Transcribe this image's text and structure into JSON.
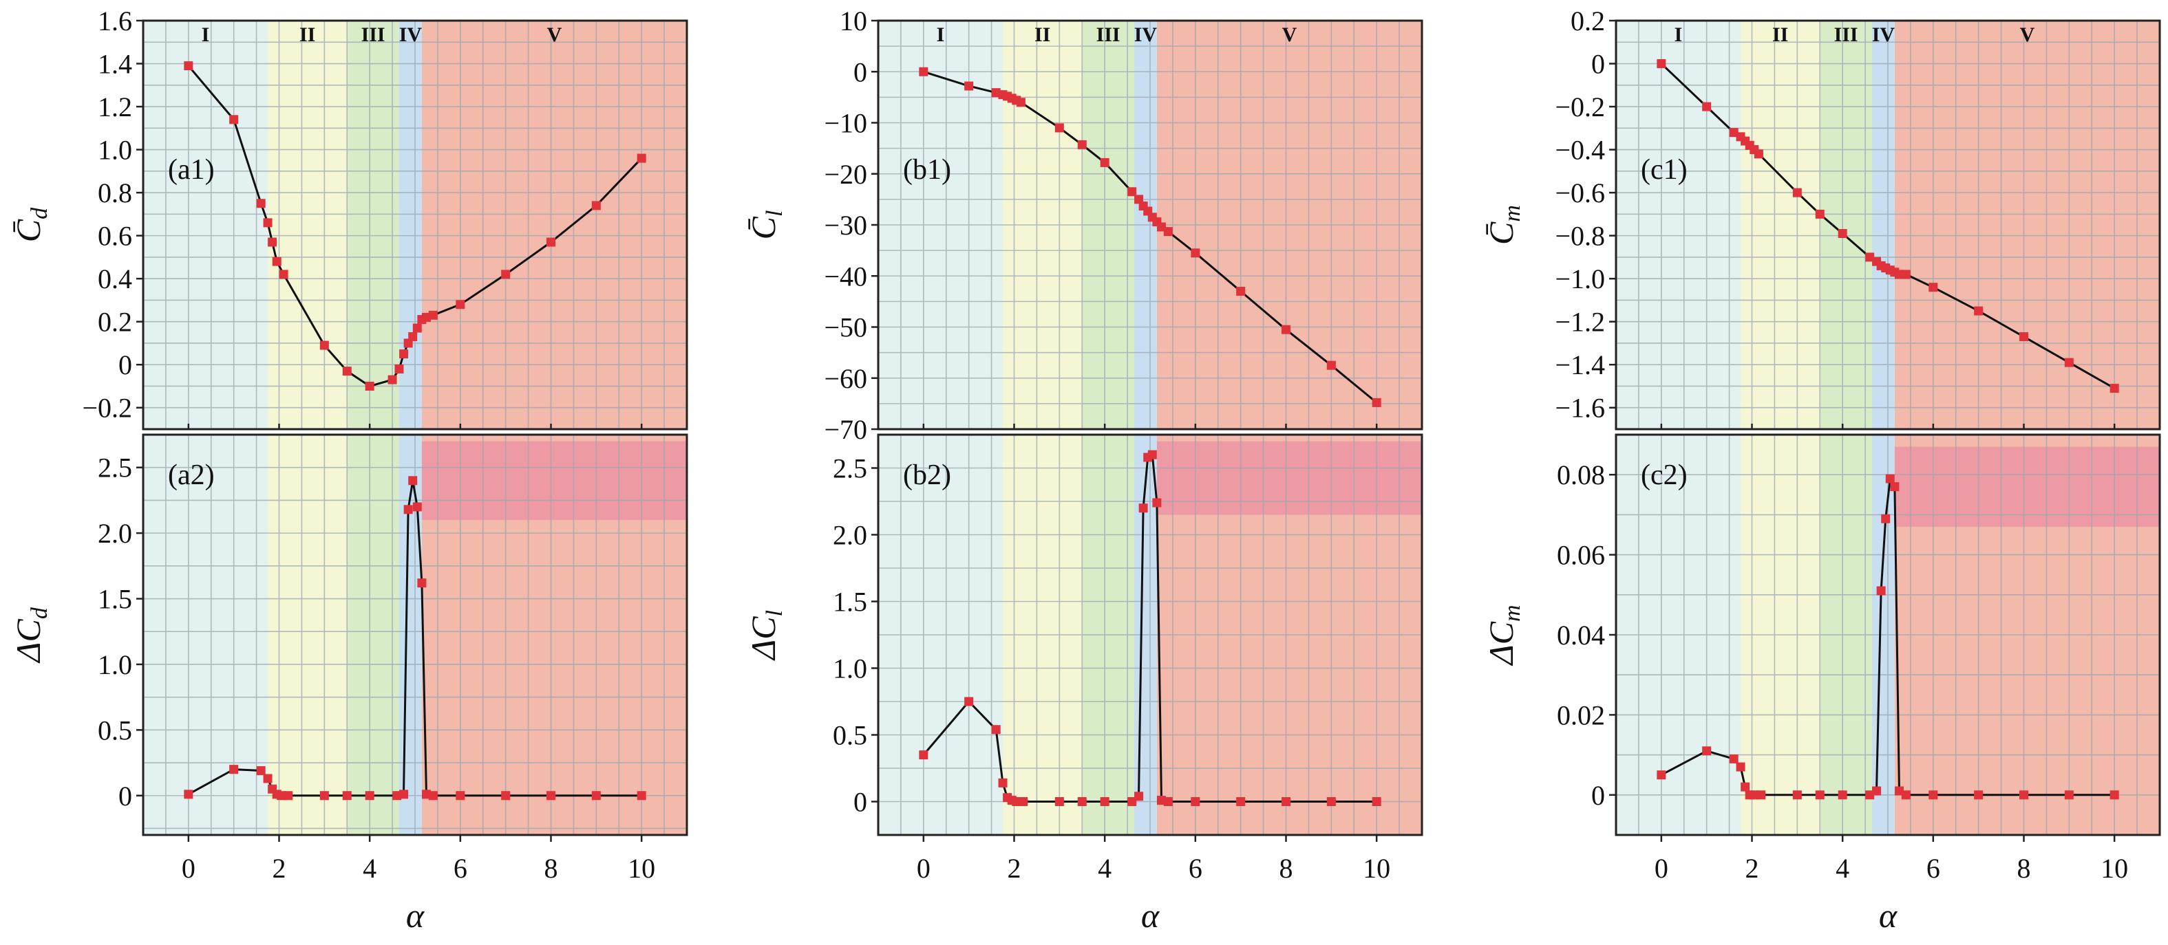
{
  "figure": {
    "regions": [
      {
        "label": "I",
        "range": [
          -1,
          1.75
        ],
        "color": "#e3f2f0"
      },
      {
        "label": "II",
        "range": [
          1.75,
          3.5
        ],
        "color": "#f5f6d4"
      },
      {
        "label": "III",
        "range": [
          3.5,
          4.65
        ],
        "color": "#d9ecc8"
      },
      {
        "label": "IV",
        "range": [
          4.65,
          5.15
        ],
        "color": "#c8dff2"
      },
      {
        "label": "V",
        "range": [
          5.15,
          11
        ],
        "color": "#f3b9aa"
      }
    ],
    "highlight_color": "#ee9aa5",
    "grid_color": "#9aa6b0",
    "marker_color": "#e0323a",
    "line_color": "#111111",
    "x_label": "α"
  },
  "chart_data": [
    {
      "type": "line",
      "panel": "(a1)",
      "ylabel": "C̄d",
      "xlim": [
        -1,
        11
      ],
      "ylim": [
        -0.3,
        1.6
      ],
      "xticks": [
        0,
        2,
        4,
        6,
        8,
        10
      ],
      "yticks": [
        -0.2,
        0,
        0.2,
        0.4,
        0.6,
        0.8,
        1.0,
        1.2,
        1.4,
        1.6
      ],
      "ytick_labels": [
        "−0.2",
        "0",
        "0.2",
        "0.4",
        "0.6",
        "0.8",
        "1.0",
        "1.2",
        "1.4",
        "1.6"
      ],
      "x": [
        0,
        1,
        1.6,
        1.75,
        1.85,
        1.95,
        2.1,
        3,
        3.5,
        4,
        4.5,
        4.65,
        4.75,
        4.85,
        4.95,
        5.05,
        5.15,
        5.25,
        5.4,
        6,
        7,
        8,
        9,
        10
      ],
      "y": [
        1.39,
        1.14,
        0.75,
        0.66,
        0.57,
        0.48,
        0.42,
        0.09,
        -0.03,
        -0.1,
        -0.07,
        -0.02,
        0.05,
        0.1,
        0.13,
        0.17,
        0.21,
        0.22,
        0.23,
        0.28,
        0.42,
        0.57,
        0.74,
        0.96
      ]
    },
    {
      "type": "line",
      "panel": "(b1)",
      "ylabel": "C̄l",
      "xlim": [
        -1,
        11
      ],
      "ylim": [
        -70,
        10
      ],
      "xticks": [
        0,
        2,
        4,
        6,
        8,
        10
      ],
      "yticks": [
        -70,
        -60,
        -50,
        -40,
        -30,
        -20,
        -10,
        0,
        10
      ],
      "ytick_labels": [
        "−70",
        "−60",
        "−50",
        "−40",
        "−30",
        "−20",
        "−10",
        "0",
        "10"
      ],
      "x": [
        0,
        1,
        1.6,
        1.75,
        1.85,
        1.95,
        2.05,
        2.15,
        3,
        3.5,
        4,
        4.6,
        4.75,
        4.85,
        4.95,
        5.05,
        5.15,
        5.25,
        5.4,
        6,
        7,
        8,
        9,
        10
      ],
      "y": [
        0,
        -2.8,
        -4.1,
        -4.5,
        -4.8,
        -5.2,
        -5.6,
        -6,
        -11,
        -14.3,
        -17.8,
        -23.5,
        -25,
        -26.3,
        -27.3,
        -28.5,
        -29.4,
        -30.4,
        -31.3,
        -35.5,
        -43,
        -50.5,
        -57.5,
        -64.8
      ]
    },
    {
      "type": "line",
      "panel": "(c1)",
      "ylabel": "C̄m",
      "xlim": [
        -1,
        11
      ],
      "ylim": [
        -1.7,
        0.2
      ],
      "xticks": [
        0,
        2,
        4,
        6,
        8,
        10
      ],
      "yticks": [
        -1.6,
        -1.4,
        -1.2,
        -1.0,
        -0.8,
        -0.6,
        -0.4,
        -0.2,
        0,
        0.2
      ],
      "ytick_labels": [
        "−1.6",
        "−1.4",
        "−1.2",
        "−1.0",
        "−0.8",
        "−0.6",
        "−0.4",
        "−0.2",
        "0",
        "0.2"
      ],
      "x": [
        0,
        1,
        1.6,
        1.75,
        1.85,
        1.95,
        2.05,
        2.15,
        3,
        3.5,
        4,
        4.6,
        4.75,
        4.85,
        4.95,
        5.05,
        5.15,
        5.25,
        5.4,
        6,
        7,
        8,
        9,
        10
      ],
      "y": [
        0,
        -0.2,
        -0.32,
        -0.34,
        -0.36,
        -0.38,
        -0.4,
        -0.42,
        -0.6,
        -0.7,
        -0.79,
        -0.9,
        -0.92,
        -0.94,
        -0.95,
        -0.96,
        -0.97,
        -0.98,
        -0.98,
        -1.04,
        -1.15,
        -1.27,
        -1.39,
        -1.51
      ]
    },
    {
      "type": "line",
      "panel": "(a2)",
      "ylabel": "ΔCd",
      "xlim": [
        -1,
        11
      ],
      "ylim": [
        -0.3,
        2.75
      ],
      "xticks": [
        0,
        2,
        4,
        6,
        8,
        10
      ],
      "xtick_labels": [
        "0",
        "2",
        "4",
        "6",
        "8",
        "10"
      ],
      "yticks": [
        0,
        0.5,
        1.0,
        1.5,
        2.0,
        2.5
      ],
      "ytick_labels": [
        "0",
        "0.5",
        "1.0",
        "1.5",
        "2.0",
        "2.5"
      ],
      "highlight": {
        "x": [
          5.15,
          11
        ],
        "y": [
          2.1,
          2.7
        ]
      },
      "x": [
        0,
        1,
        1.6,
        1.75,
        1.85,
        1.95,
        2.05,
        2.2,
        3,
        3.5,
        4,
        4.6,
        4.75,
        4.85,
        4.95,
        5.05,
        5.15,
        5.25,
        5.4,
        6,
        7,
        8,
        9,
        10
      ],
      "y": [
        0.01,
        0.2,
        0.19,
        0.13,
        0.05,
        0.01,
        0,
        0,
        0,
        0,
        0,
        0,
        0.01,
        2.18,
        2.4,
        2.2,
        1.62,
        0.01,
        0,
        0,
        0,
        0,
        0,
        0
      ]
    },
    {
      "type": "line",
      "panel": "(b2)",
      "ylabel": "ΔCl",
      "xlim": [
        -1,
        11
      ],
      "ylim": [
        -0.25,
        2.75
      ],
      "xticks": [
        0,
        2,
        4,
        6,
        8,
        10
      ],
      "xtick_labels": [
        "0",
        "2",
        "4",
        "6",
        "8",
        "10"
      ],
      "yticks": [
        0,
        0.5,
        1.0,
        1.5,
        2.0,
        2.5
      ],
      "ytick_labels": [
        "0",
        "0.5",
        "1.0",
        "1.5",
        "2.0",
        "2.5"
      ],
      "highlight": {
        "x": [
          5.15,
          11
        ],
        "y": [
          2.15,
          2.7
        ]
      },
      "x": [
        0,
        1,
        1.6,
        1.75,
        1.85,
        1.95,
        2.05,
        2.2,
        3,
        3.5,
        4,
        4.6,
        4.75,
        4.85,
        4.95,
        5.05,
        5.15,
        5.25,
        5.4,
        6,
        7,
        8,
        9,
        10
      ],
      "y": [
        0.35,
        0.75,
        0.54,
        0.14,
        0.03,
        0.01,
        0,
        0,
        0,
        0,
        0,
        0,
        0.04,
        2.2,
        2.58,
        2.6,
        2.24,
        0.01,
        0,
        0,
        0,
        0,
        0,
        0
      ]
    },
    {
      "type": "line",
      "panel": "(c2)",
      "ylabel": "ΔCm",
      "xlim": [
        -1,
        11
      ],
      "ylim": [
        -0.01,
        0.09
      ],
      "xticks": [
        0,
        2,
        4,
        6,
        8,
        10
      ],
      "xtick_labels": [
        "0",
        "2",
        "4",
        "6",
        "8",
        "10"
      ],
      "yticks": [
        0,
        0.02,
        0.04,
        0.06,
        0.08
      ],
      "ytick_labels": [
        "0",
        "0.02",
        "0.04",
        "0.06",
        "0.08"
      ],
      "highlight": {
        "x": [
          5.15,
          11
        ],
        "y": [
          0.067,
          0.087
        ]
      },
      "x": [
        0,
        1,
        1.6,
        1.75,
        1.85,
        1.95,
        2.05,
        2.2,
        3,
        3.5,
        4,
        4.6,
        4.75,
        4.85,
        4.95,
        5.05,
        5.15,
        5.25,
        5.4,
        6,
        7,
        8,
        9,
        10
      ],
      "y": [
        0.005,
        0.011,
        0.009,
        0.007,
        0.002,
        0,
        0,
        0,
        0,
        0,
        0,
        0,
        0.001,
        0.051,
        0.069,
        0.079,
        0.077,
        0.001,
        0,
        0,
        0,
        0,
        0,
        0
      ]
    }
  ]
}
